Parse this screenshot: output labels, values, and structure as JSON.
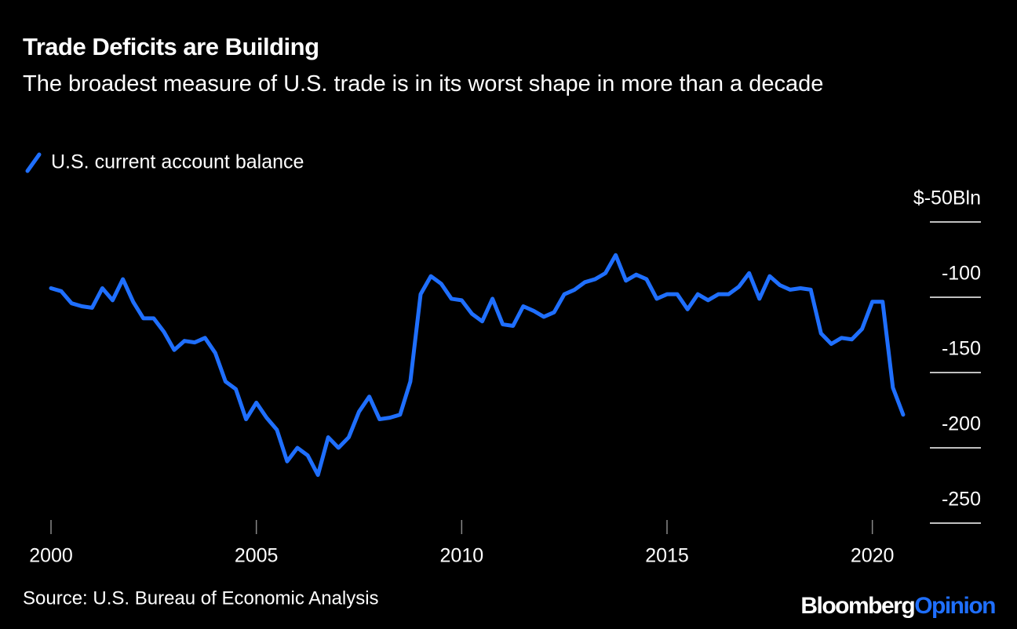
{
  "chart_data": {
    "type": "line",
    "title": "Trade Deficits are Building",
    "subtitle": "The broadest measure of U.S. trade is in its worst shape in more than a decade",
    "source": "Source: U.S. Bureau of Economic Analysis",
    "branding": [
      "Bloomberg",
      "Opinion"
    ],
    "x": [
      2000,
      2000.25,
      2000.5,
      2000.75,
      2001,
      2001.25,
      2001.5,
      2001.75,
      2002,
      2002.25,
      2002.5,
      2002.75,
      2003,
      2003.25,
      2003.5,
      2003.75,
      2004,
      2004.25,
      2004.5,
      2004.75,
      2005,
      2005.25,
      2005.5,
      2005.75,
      2006,
      2006.25,
      2006.5,
      2006.75,
      2007,
      2007.25,
      2007.5,
      2007.75,
      2008,
      2008.25,
      2008.5,
      2008.75,
      2009,
      2009.25,
      2009.5,
      2009.75,
      2010,
      2010.25,
      2010.5,
      2010.75,
      2011,
      2011.25,
      2011.5,
      2011.75,
      2012,
      2012.25,
      2012.5,
      2012.75,
      2013,
      2013.25,
      2013.5,
      2013.75,
      2014,
      2014.25,
      2014.5,
      2014.75,
      2015,
      2015.25,
      2015.5,
      2015.75,
      2016,
      2016.25,
      2016.5,
      2016.75,
      2017,
      2017.25,
      2017.5,
      2017.75,
      2018,
      2018.25,
      2018.5,
      2018.75,
      2019,
      2019.25,
      2019.5,
      2019.75,
      2020,
      2020.25,
      2020.5,
      2020.75
    ],
    "series": [
      {
        "name": "U.S. current account balance",
        "color": "#1f6fff",
        "values": [
          -94,
          -96,
          -104,
          -106,
          -107,
          -94,
          -102,
          -88,
          -103,
          -114,
          -114,
          -123,
          -135,
          -129,
          -130,
          -127,
          -137,
          -156,
          -161,
          -181,
          -170,
          -180,
          -188,
          -209,
          -200,
          -205,
          -218,
          -193,
          -200,
          -193,
          -176,
          -166,
          -181,
          -180,
          -178,
          -156,
          -98,
          -86,
          -91,
          -101,
          -102,
          -111,
          -116,
          -101,
          -118,
          -119,
          -106,
          -109,
          -113,
          -110,
          -98,
          -95,
          -90,
          -88,
          -84,
          -72,
          -89,
          -85,
          -88,
          -101,
          -98,
          -98,
          -108,
          -98,
          -102,
          -98,
          -98,
          -93,
          -84,
          -101,
          -86,
          -92,
          -95,
          -94,
          -95,
          -124,
          -131,
          -127,
          -128,
          -121,
          -103,
          -103,
          -160,
          -178
        ]
      }
    ],
    "xlim": [
      2000,
      2021
    ],
    "xticks": [
      2000,
      2005,
      2010,
      2015,
      2020
    ],
    "ylim": [
      -250,
      -50
    ],
    "yticks": [
      {
        "value": -50,
        "label": "$-50Bln"
      },
      -100,
      -150,
      -200,
      -250
    ]
  }
}
